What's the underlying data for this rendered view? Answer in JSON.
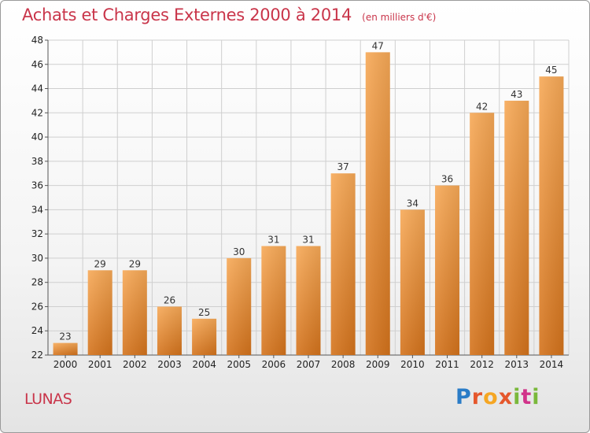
{
  "header": {
    "title": "Achats et Charges Externes 2000 à 2014",
    "subtitle": "(en milliers d'€)"
  },
  "footer": {
    "place": "LUNAS",
    "logo_text": "Proxiti"
  },
  "colors": {
    "title": "#c9354a",
    "bar_light": "#f7a957",
    "bar_dark": "#d4731c",
    "grid": "#cfcfcf"
  },
  "chart_data": {
    "type": "bar",
    "title": "Achats et Charges Externes 2000 à 2014",
    "subtitle": "(en milliers d'€)",
    "categories": [
      "2000",
      "2001",
      "2002",
      "2003",
      "2004",
      "2005",
      "2006",
      "2007",
      "2008",
      "2009",
      "2010",
      "2011",
      "2012",
      "2013",
      "2014"
    ],
    "values": [
      23,
      29,
      29,
      26,
      25,
      30,
      31,
      31,
      37,
      47,
      34,
      36,
      42,
      43,
      45
    ],
    "data_labels": [
      "23",
      "29",
      "29",
      "26",
      "25",
      "30",
      "31",
      "31",
      "37",
      "47",
      "34",
      "36",
      "42",
      "43",
      "45"
    ],
    "ylim": [
      22,
      48
    ],
    "yticks": [
      22,
      24,
      26,
      28,
      30,
      32,
      34,
      36,
      38,
      40,
      42,
      44,
      46,
      48
    ],
    "grid": true,
    "xlabel": "",
    "ylabel": ""
  }
}
